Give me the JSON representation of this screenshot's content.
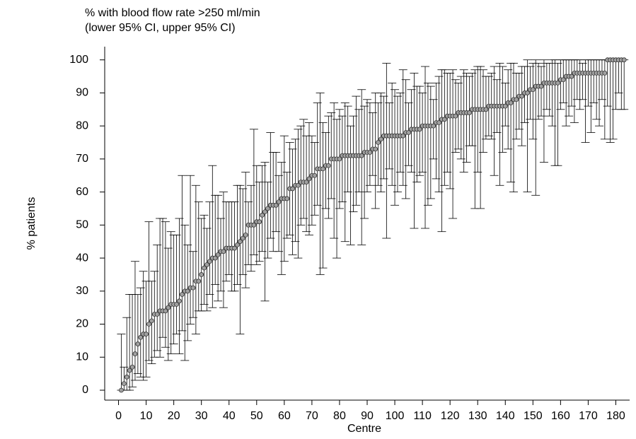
{
  "chart_data": {
    "type": "errorbar",
    "title": "% with blood flow rate >250 ml/min",
    "subtitle": "(lower 95% CI, upper 95% CI)",
    "xlabel": "Centre",
    "ylabel": "% patients",
    "x": [
      1,
      2,
      3,
      4,
      5,
      6,
      7,
      8,
      9,
      10,
      11,
      12,
      13,
      14,
      15,
      16,
      17,
      18,
      19,
      20,
      21,
      22,
      23,
      24,
      25,
      26,
      27,
      28,
      29,
      30,
      31,
      32,
      33,
      34,
      35,
      36,
      37,
      38,
      39,
      40,
      41,
      42,
      43,
      44,
      45,
      46,
      47,
      48,
      49,
      50,
      51,
      52,
      53,
      54,
      55,
      56,
      57,
      58,
      59,
      60,
      61,
      62,
      63,
      64,
      65,
      66,
      67,
      68,
      69,
      70,
      71,
      72,
      73,
      74,
      75,
      76,
      77,
      78,
      79,
      80,
      81,
      82,
      83,
      84,
      85,
      86,
      87,
      88,
      89,
      90,
      91,
      92,
      93,
      94,
      95,
      96,
      97,
      98,
      99,
      100,
      101,
      102,
      103,
      104,
      105,
      106,
      107,
      108,
      109,
      110,
      111,
      112,
      113,
      114,
      115,
      116,
      117,
      118,
      119,
      120,
      121,
      122,
      123,
      124,
      125,
      126,
      127,
      128,
      129,
      130,
      131,
      132,
      133,
      134,
      135,
      136,
      137,
      138,
      139,
      140,
      141,
      142,
      143,
      144,
      145,
      146,
      147,
      148,
      149,
      150,
      151,
      152,
      153,
      154,
      155,
      156,
      157,
      158,
      159,
      160,
      161,
      162,
      163,
      164,
      165,
      166,
      167,
      168,
      169,
      170,
      171,
      172,
      173,
      174,
      175,
      176,
      177,
      178,
      179,
      180,
      181,
      182,
      183
    ],
    "values": [
      0,
      2,
      4,
      6,
      7,
      11,
      14,
      16,
      17,
      17,
      20,
      21,
      23,
      23,
      24,
      24,
      24,
      25,
      26,
      26,
      26,
      27,
      29,
      30,
      30,
      31,
      31,
      33,
      33,
      35,
      37,
      38,
      39,
      40,
      40,
      41,
      42,
      42,
      43,
      43,
      43,
      43,
      44,
      45,
      46,
      47,
      50,
      50,
      50,
      51,
      51,
      53,
      54,
      55,
      56,
      56,
      56,
      57,
      58,
      58,
      58,
      61,
      61,
      62,
      62,
      63,
      63,
      63,
      64,
      65,
      65,
      67,
      67,
      67,
      68,
      68,
      70,
      70,
      70,
      70,
      71,
      71,
      71,
      71,
      71,
      71,
      71,
      71,
      72,
      72,
      72,
      73,
      73,
      75,
      76,
      77,
      77,
      77,
      77,
      77,
      77,
      77,
      77,
      78,
      78,
      79,
      79,
      79,
      79,
      80,
      80,
      80,
      80,
      80,
      81,
      81,
      82,
      82,
      83,
      83,
      83,
      83,
      84,
      84,
      84,
      84,
      84,
      85,
      85,
      85,
      85,
      85,
      85,
      86,
      86,
      86,
      86,
      86,
      86,
      86,
      87,
      87,
      88,
      88,
      89,
      89,
      90,
      90,
      91,
      91,
      92,
      92,
      92,
      93,
      93,
      93,
      93,
      93,
      93,
      94,
      94,
      95,
      95,
      95,
      96,
      96,
      96,
      96,
      96,
      96,
      96,
      96,
      96,
      96,
      96,
      96,
      100,
      100,
      100,
      100,
      100,
      100,
      100
    ],
    "lower": [
      0,
      0,
      0,
      0,
      1,
      3,
      5,
      4,
      3,
      4,
      9,
      8,
      10,
      12,
      10,
      16,
      13,
      9,
      11,
      14,
      17,
      11,
      18,
      9,
      15,
      20,
      22,
      17,
      24,
      24,
      26,
      24,
      29,
      25,
      32,
      27,
      30,
      25,
      33,
      35,
      30,
      30,
      32,
      17,
      35,
      31,
      38,
      36,
      41,
      38,
      39,
      42,
      27,
      40,
      46,
      42,
      48,
      42,
      35,
      39,
      46,
      47,
      41,
      45,
      40,
      50,
      52,
      48,
      47,
      50,
      53,
      56,
      35,
      37,
      55,
      52,
      58,
      46,
      40,
      55,
      57,
      45,
      60,
      44,
      54,
      56,
      60,
      44,
      52,
      60,
      62,
      65,
      55,
      62,
      60,
      64,
      46,
      67,
      62,
      56,
      60,
      66,
      62,
      58,
      68,
      66,
      49,
      63,
      65,
      66,
      49,
      56,
      58,
      70,
      64,
      60,
      48,
      62,
      66,
      61,
      52,
      72,
      73,
      70,
      66,
      69,
      74,
      74,
      55,
      66,
      55,
      72,
      76,
      77,
      76,
      65,
      78,
      62,
      72,
      80,
      73,
      63,
      60,
      76,
      79,
      74,
      81,
      60,
      82,
      76,
      59,
      82,
      83,
      69,
      85,
      83,
      80,
      68,
      68,
      85,
      87,
      80,
      83,
      86,
      81,
      88,
      85,
      88,
      75,
      86,
      78,
      87,
      82,
      80,
      88,
      76,
      86,
      75,
      76,
      85,
      90,
      85,
      85
    ],
    "upper": [
      17,
      7,
      22,
      29,
      29,
      39,
      29,
      31,
      36,
      33,
      51,
      33,
      36,
      44,
      52,
      52,
      51,
      43,
      48,
      47,
      47,
      52,
      65,
      50,
      44,
      65,
      42,
      62,
      57,
      52,
      53,
      49,
      57,
      68,
      59,
      59,
      52,
      60,
      57,
      57,
      57,
      57,
      62,
      62,
      61,
      66,
      57,
      62,
      79,
      68,
      63,
      68,
      69,
      63,
      78,
      72,
      72,
      65,
      69,
      77,
      66,
      75,
      73,
      76,
      79,
      80,
      82,
      77,
      81,
      77,
      75,
      87,
      90,
      81,
      78,
      83,
      84,
      87,
      82,
      85,
      83,
      87,
      86,
      80,
      83,
      89,
      85,
      91,
      86,
      88,
      87,
      84,
      90,
      87,
      90,
      89,
      99,
      87,
      93,
      91,
      89,
      90,
      97,
      94,
      87,
      91,
      96,
      92,
      92,
      90,
      98,
      93,
      92,
      88,
      93,
      95,
      97,
      97,
      96,
      96,
      97,
      94,
      93,
      95,
      97,
      96,
      95,
      96,
      97,
      98,
      98,
      97,
      95,
      95,
      96,
      98,
      94,
      99,
      98,
      93,
      97,
      99,
      99,
      96,
      96,
      98,
      98,
      100,
      98,
      99,
      100,
      99,
      98,
      100,
      99,
      99,
      100,
      100,
      99,
      100,
      100,
      100,
      100,
      100,
      100,
      100,
      100,
      99,
      100,
      100,
      100,
      100,
      100,
      100,
      100,
      100,
      100,
      100,
      100,
      100,
      100,
      100,
      100
    ],
    "xlim": [
      -5,
      185
    ],
    "xticks": [
      0,
      10,
      20,
      30,
      40,
      50,
      60,
      70,
      80,
      90,
      100,
      110,
      120,
      130,
      140,
      150,
      160,
      170,
      180
    ],
    "ylim": [
      -3,
      104
    ],
    "yticks": [
      0,
      10,
      20,
      30,
      40,
      50,
      60,
      70,
      80,
      90,
      100
    ],
    "marker_color": "#a0a0a0",
    "bar_color": "#000000"
  }
}
